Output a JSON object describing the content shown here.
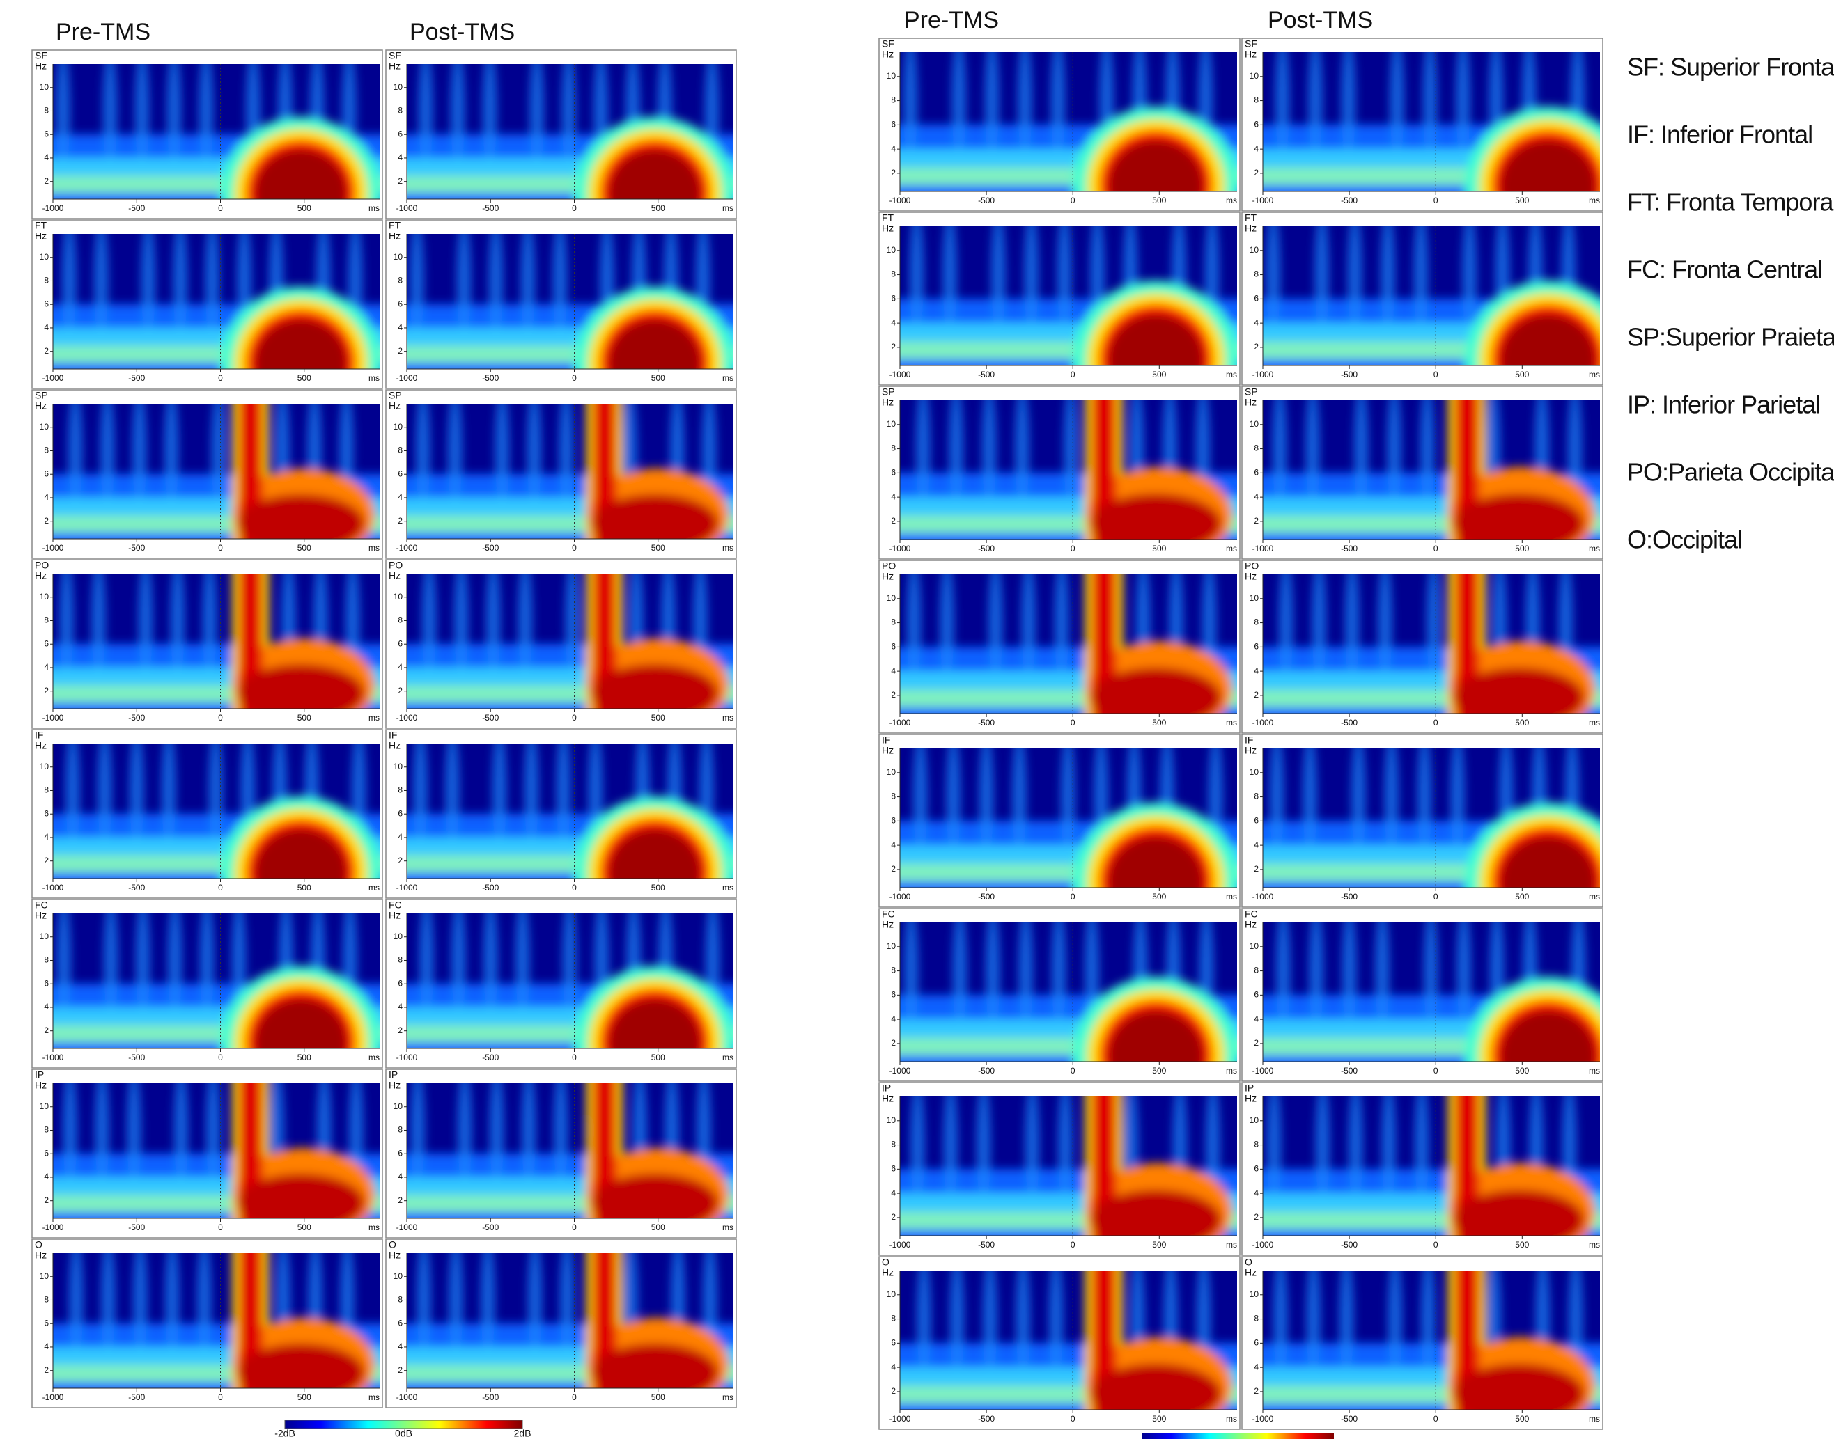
{
  "figures": [
    {
      "headers": [
        "Pre-TMS",
        "Post-TMS"
      ],
      "rows": [
        "SF",
        "FT",
        "SP",
        "PO",
        "IF",
        "FC",
        "IP",
        "O"
      ],
      "colorbar": [
        "-2dB",
        "0dB",
        "2dB"
      ]
    },
    {
      "headers": [
        "Pre-TMS",
        "Post-TMS"
      ],
      "rows": [
        "SF",
        "FT",
        "SP",
        "PO",
        "IF",
        "FC",
        "IP",
        "O"
      ]
    }
  ],
  "freq_axis": {
    "unit": "Hz",
    "lim": [
      0.5,
      12
    ],
    "ticks": [
      2,
      4,
      6,
      8,
      10
    ]
  },
  "time_axis": {
    "unit": "ms",
    "lim": [
      -1000,
      950
    ],
    "ticks": [
      -1000,
      -500,
      0,
      500
    ]
  },
  "legend": [
    "SF: Superior Frontal",
    "IF: Inferior Frontal",
    "FT: Fronta Temporal",
    "FC: Fronta Central",
    "SP:Superior Praietal",
    "IP: Inferior Parietal",
    "PO:Parieta Occipital",
    "O:Occipital"
  ]
}
